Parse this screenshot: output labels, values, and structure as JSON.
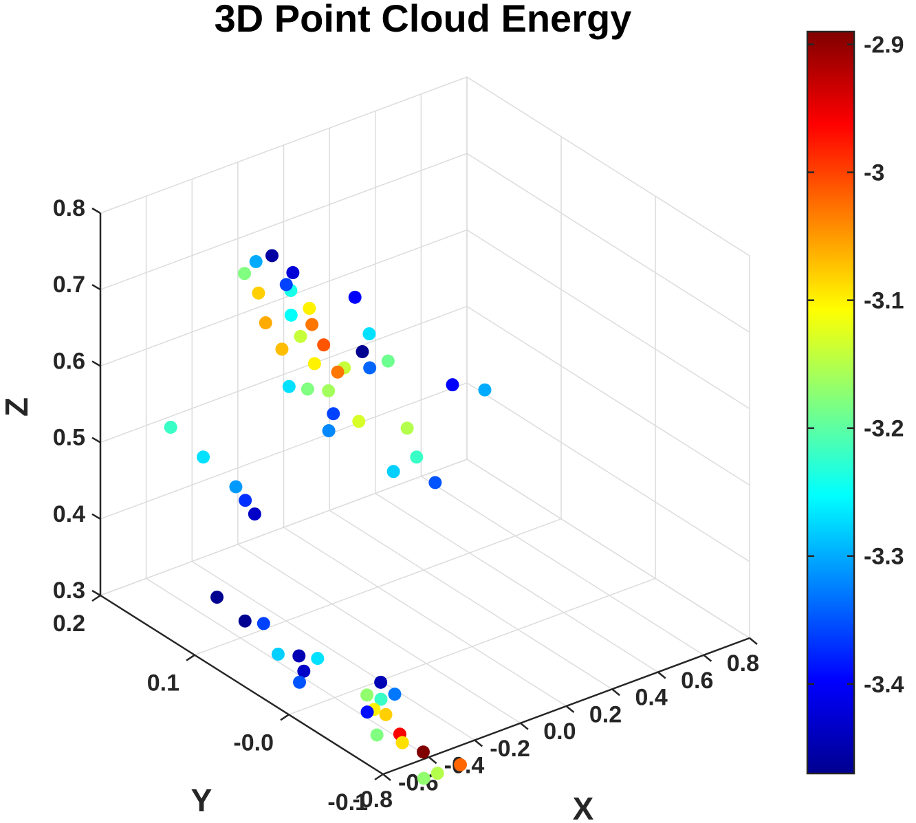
{
  "chart_data": {
    "type": "scatter",
    "title": "3D Point Cloud Energy",
    "xlabel": "X",
    "ylabel": "Y",
    "zlabel": "Z",
    "xlim": [
      -0.8,
      0.8
    ],
    "ylim": [
      -0.1,
      0.2
    ],
    "zlim": [
      0.3,
      0.8
    ],
    "x_ticks": [
      -0.8,
      -0.6,
      -0.4,
      -0.2,
      0.0,
      0.2,
      0.4,
      0.6,
      0.8
    ],
    "x_tick_labels": [
      "-0.8",
      "-0.6",
      "-0.4",
      "-0.2",
      "0.0",
      "0.2",
      "0.4",
      "0.6",
      "0.8"
    ],
    "y_ticks": [
      -0.1,
      0.0,
      0.1,
      0.2
    ],
    "y_tick_labels": [
      "-0.1",
      "-0.0",
      "0.1",
      "0.2"
    ],
    "z_ticks": [
      0.3,
      0.4,
      0.5,
      0.6,
      0.7,
      0.8
    ],
    "z_tick_labels": [
      "0.3",
      "0.4",
      "0.5",
      "0.6",
      "0.7",
      "0.8"
    ],
    "colorbar": {
      "colormap": "jet",
      "clim": [
        -3.47,
        -2.89
      ],
      "ticks": [
        -2.9,
        -3.0,
        -3.1,
        -3.2,
        -3.3,
        -3.4
      ],
      "tick_labels": [
        "-2.9",
        "-3",
        "-3.1",
        "-3.2",
        "-3.3",
        "-3.4"
      ]
    },
    "grid": true,
    "points": [
      {
        "x": -0.45,
        "y": 0.12,
        "z": 0.76,
        "c": -3.3
      },
      {
        "x": -0.38,
        "y": 0.12,
        "z": 0.76,
        "c": -3.45
      },
      {
        "x": -0.4,
        "y": 0.1,
        "z": 0.74,
        "c": -3.36
      },
      {
        "x": -0.33,
        "y": 0.11,
        "z": 0.74,
        "c": -3.42
      },
      {
        "x": -0.5,
        "y": 0.12,
        "z": 0.75,
        "c": -3.18
      },
      {
        "x": -0.48,
        "y": 0.11,
        "z": 0.73,
        "c": -3.08
      },
      {
        "x": -0.38,
        "y": 0.1,
        "z": 0.73,
        "c": -3.24
      },
      {
        "x": -0.42,
        "y": 0.09,
        "z": 0.71,
        "c": -3.25
      },
      {
        "x": -0.34,
        "y": 0.09,
        "z": 0.71,
        "c": -3.1
      },
      {
        "x": -0.37,
        "y": 0.08,
        "z": 0.7,
        "c": -3.03
      },
      {
        "x": -0.49,
        "y": 0.1,
        "z": 0.7,
        "c": -3.06
      },
      {
        "x": -0.42,
        "y": 0.08,
        "z": 0.69,
        "c": -3.14
      },
      {
        "x": -0.36,
        "y": 0.07,
        "z": 0.68,
        "c": -3.01
      },
      {
        "x": -0.46,
        "y": 0.09,
        "z": 0.67,
        "c": -3.07
      },
      {
        "x": -0.4,
        "y": 0.07,
        "z": 0.66,
        "c": -3.1
      },
      {
        "x": -0.34,
        "y": 0.06,
        "z": 0.65,
        "c": -3.03
      },
      {
        "x": -0.43,
        "y": 0.07,
        "z": 0.63,
        "c": -3.18
      },
      {
        "x": -0.38,
        "y": 0.06,
        "z": 0.63,
        "c": -3.16
      },
      {
        "x": -0.47,
        "y": 0.08,
        "z": 0.63,
        "c": -3.27
      },
      {
        "x": -0.4,
        "y": 0.05,
        "z": 0.61,
        "c": -3.36
      },
      {
        "x": -0.33,
        "y": 0.04,
        "z": 0.6,
        "c": -3.13
      },
      {
        "x": -0.42,
        "y": 0.05,
        "z": 0.59,
        "c": -3.32
      },
      {
        "x": -0.1,
        "y": 0.1,
        "z": 0.69,
        "c": -3.4
      },
      {
        "x": -0.12,
        "y": 0.08,
        "z": 0.66,
        "c": -3.27
      },
      {
        "x": -0.15,
        "y": 0.08,
        "z": 0.64,
        "c": -3.46
      },
      {
        "x": -0.27,
        "y": 0.07,
        "z": 0.64,
        "c": -3.14
      },
      {
        "x": -0.2,
        "y": 0.06,
        "z": 0.64,
        "c": -3.34
      },
      {
        "x": -0.12,
        "y": 0.06,
        "z": 0.64,
        "c": -3.19
      },
      {
        "x": -0.16,
        "y": 0.03,
        "z": 0.58,
        "c": -3.15
      },
      {
        "x": -0.16,
        "y": 0.02,
        "z": 0.55,
        "c": -3.22
      },
      {
        "x": -0.22,
        "y": 0.03,
        "z": 0.53,
        "c": -3.28
      },
      {
        "x": -0.12,
        "y": 0.01,
        "z": 0.52,
        "c": -3.35
      },
      {
        "x": 0.12,
        "y": 0.05,
        "z": 0.59,
        "c": -3.4
      },
      {
        "x": 0.22,
        "y": 0.04,
        "z": 0.58,
        "c": -3.3
      },
      {
        "x": -0.74,
        "y": 0.14,
        "z": 0.56,
        "c": -3.22
      },
      {
        "x": -0.68,
        "y": 0.12,
        "z": 0.53,
        "c": -3.27
      },
      {
        "x": -0.62,
        "y": 0.1,
        "z": 0.5,
        "c": -3.31
      },
      {
        "x": -0.62,
        "y": 0.09,
        "z": 0.49,
        "c": -3.37
      },
      {
        "x": -0.62,
        "y": 0.08,
        "z": 0.48,
        "c": -3.43
      },
      {
        "x": -0.62,
        "y": 0.12,
        "z": 0.34,
        "c": -3.46
      },
      {
        "x": -0.58,
        "y": 0.1,
        "z": 0.32,
        "c": -3.46
      },
      {
        "x": -0.54,
        "y": 0.09,
        "z": 0.32,
        "c": -3.36
      },
      {
        "x": -0.6,
        "y": 0.06,
        "z": 0.31,
        "c": -3.28
      },
      {
        "x": -0.55,
        "y": 0.05,
        "z": 0.31,
        "c": -3.44
      },
      {
        "x": -0.57,
        "y": 0.04,
        "z": 0.3,
        "c": -3.43
      },
      {
        "x": -0.51,
        "y": 0.04,
        "z": 0.31,
        "c": -3.27
      },
      {
        "x": -0.63,
        "y": 0.03,
        "z": 0.3,
        "c": -3.35
      },
      {
        "x": -0.5,
        "y": -0.01,
        "z": 0.3,
        "c": -3.17
      },
      {
        "x": -0.44,
        "y": -0.01,
        "z": 0.31,
        "c": -3.44
      },
      {
        "x": -0.54,
        "y": -0.02,
        "z": 0.29,
        "c": -3.39
      },
      {
        "x": -0.48,
        "y": -0.02,
        "z": 0.3,
        "c": -3.22
      },
      {
        "x": -0.42,
        "y": -0.02,
        "z": 0.3,
        "c": -3.33
      },
      {
        "x": -0.51,
        "y": -0.02,
        "z": 0.29,
        "c": -3.1
      },
      {
        "x": -0.5,
        "y": -0.03,
        "z": 0.29,
        "c": -3.08
      },
      {
        "x": -0.48,
        "y": -0.04,
        "z": 0.27,
        "c": -2.96
      },
      {
        "x": -0.51,
        "y": -0.05,
        "z": 0.27,
        "c": -3.02
      },
      {
        "x": -0.58,
        "y": -0.04,
        "z": 0.28,
        "c": -3.18
      },
      {
        "x": -0.51,
        "y": -0.05,
        "z": 0.27,
        "c": -3.09
      },
      {
        "x": -0.46,
        "y": -0.06,
        "z": 0.26,
        "c": -2.89
      },
      {
        "x": -0.54,
        "y": -0.08,
        "z": 0.25,
        "c": -3.17
      },
      {
        "x": -0.48,
        "y": -0.08,
        "z": 0.25,
        "c": -3.15
      },
      {
        "x": -0.38,
        "y": -0.08,
        "z": 0.25,
        "c": -3.02
      }
    ]
  }
}
